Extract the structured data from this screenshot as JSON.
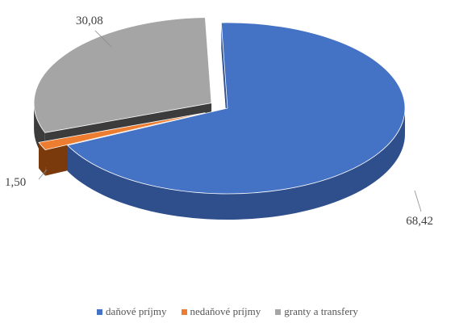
{
  "chart_data": {
    "type": "pie",
    "title": "",
    "categories": [
      "daňové príjmy",
      "nedaňové príjmy",
      "granty a transfery"
    ],
    "values": [
      68.42,
      1.5,
      30.08
    ],
    "value_labels": [
      "68,42",
      "1,50",
      "30,08"
    ],
    "colors": [
      "#4472C4",
      "#ED7D31",
      "#A5A5A5"
    ],
    "side_colors": [
      "#2F4F8C",
      "#7A3A0C",
      "#3C3C3C"
    ],
    "style": "3d-exploded",
    "legend": "bottom"
  }
}
